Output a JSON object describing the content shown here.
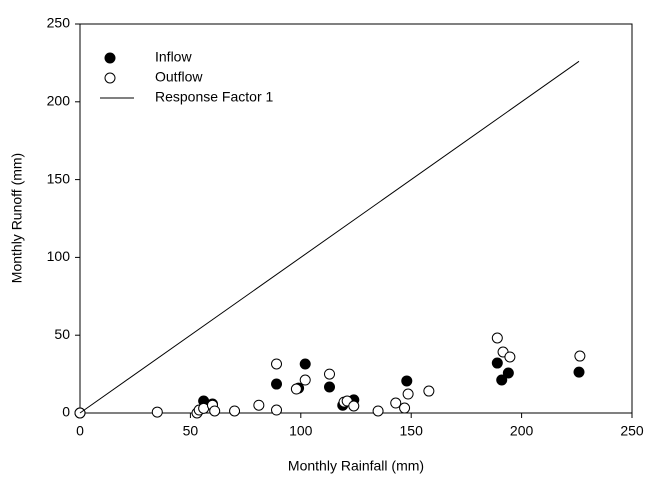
{
  "chart_data": {
    "type": "scatter",
    "x_label": "Monthly Rainfall (mm)",
    "y_label": "Monthly Runoff (mm)",
    "xlim": [
      0,
      250
    ],
    "xticks": [
      0,
      50,
      100,
      150,
      200,
      250
    ],
    "ylim": [
      0,
      250
    ],
    "yticks": [
      0,
      50,
      100,
      150,
      200,
      250
    ],
    "legend": "top-left",
    "series": [
      {
        "name": "Inflow",
        "mode": "markers",
        "color": "#000000",
        "filled": true,
        "x": [
          0,
          56,
          60,
          89,
          99,
          102,
          113,
          119,
          124,
          148,
          189,
          191,
          194,
          226
        ],
        "values": [
          0,
          7.7,
          5.8,
          18.6,
          16,
          31.5,
          16.7,
          5,
          8.4,
          20.6,
          32.1,
          21.2,
          25.7,
          26.3
        ]
      },
      {
        "name": "Outflow",
        "mode": "markers",
        "color": "#000000",
        "filled": false,
        "x": [
          0,
          35,
          53,
          54,
          56,
          60,
          61,
          70,
          81,
          89,
          89,
          98,
          102,
          113,
          119.6,
          121,
          124,
          135,
          143,
          147,
          148.6,
          158,
          189,
          191.6,
          194.7,
          226.4
        ],
        "values": [
          0,
          0.6,
          0,
          1.9,
          3,
          5,
          1.3,
          1.3,
          5,
          31.5,
          1.9,
          15.4,
          21.2,
          25,
          7,
          7.7,
          4.5,
          1.3,
          6.4,
          3.2,
          12.2,
          14.1,
          48.2,
          39.2,
          36,
          36.6
        ]
      },
      {
        "name": "Response Factor 1",
        "mode": "line",
        "color": "#000000",
        "x": [
          0,
          226
        ],
        "values": [
          0,
          226
        ]
      }
    ]
  }
}
